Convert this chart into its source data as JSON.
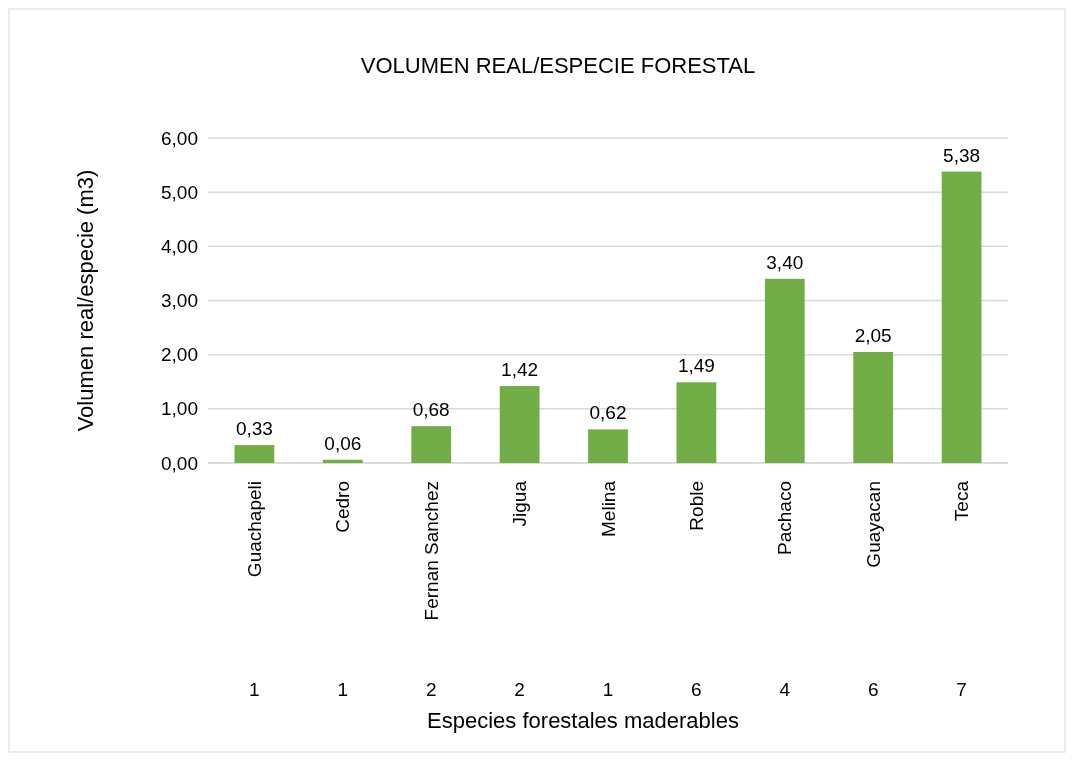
{
  "chart_data": {
    "type": "bar",
    "title": "VOLUMEN REAL/ESPECIE FORESTAL",
    "xlabel": "Especies forestales maderables",
    "ylabel": "Volumen real/especie (m3)",
    "categories": [
      "Guachapeli",
      "Cedro",
      "Fernan Sanchez",
      "Jigua",
      "Melina",
      "Roble",
      "Pachaco",
      "Guayacan",
      "Teca"
    ],
    "values": [
      0.33,
      0.06,
      0.68,
      1.42,
      0.62,
      1.49,
      3.4,
      2.05,
      5.38
    ],
    "value_labels": [
      "0,33",
      "0,06",
      "0,68",
      "1,42",
      "0,62",
      "1,49",
      "3,40",
      "2,05",
      "5,38"
    ],
    "color": "#70ad47",
    "ylim": [
      0,
      6
    ],
    "yticks": [
      {
        "value": 0,
        "label": "0,00"
      },
      {
        "value": 1,
        "label": "1,00"
      },
      {
        "value": 2,
        "label": "2,00"
      },
      {
        "value": 3,
        "label": "3,00"
      },
      {
        "value": 4,
        "label": "4,00"
      },
      {
        "value": 5,
        "label": "5,00"
      },
      {
        "value": 6,
        "label": "6,00"
      }
    ],
    "grid": "y",
    "annotations": [
      "1",
      "1",
      "2",
      "2",
      "1",
      "6",
      "4",
      "6",
      "7"
    ]
  }
}
